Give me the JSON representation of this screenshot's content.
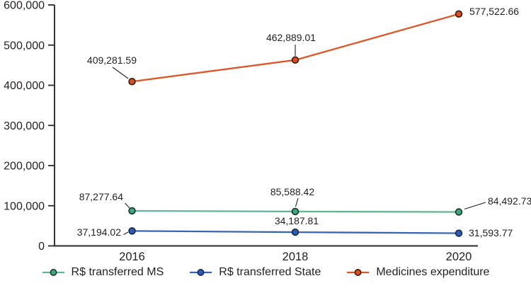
{
  "chart_data": {
    "type": "line",
    "title": "",
    "xlabel": "",
    "ylabel": "",
    "categories": [
      "2016",
      "2018",
      "2020"
    ],
    "series": [
      {
        "name": "R$ transferred MS",
        "color": "#63b593",
        "marker_fill": "#3fa883",
        "marker_stroke": "#17392b",
        "values": [
          87277.64,
          85588.42,
          84492.73
        ],
        "point_labels": [
          "87,277.64",
          "85,588.42",
          "84,492.73"
        ]
      },
      {
        "name": "R$ transferred State",
        "color": "#3c64b4",
        "marker_fill": "#2e5cb0",
        "marker_stroke": "#192a52",
        "values": [
          37194.02,
          34187.81,
          31593.77
        ],
        "point_labels": [
          "37,194.02",
          "34,187.81",
          "31,593.77"
        ]
      },
      {
        "name": "Medicines expenditure",
        "color": "#df5526",
        "marker_fill": "#d94e25",
        "marker_stroke": "#3f1d0b",
        "values": [
          409281.59,
          462889.01,
          577522.66
        ],
        "point_labels": [
          "409,281.59",
          "462,889.01",
          "577,522.66"
        ]
      }
    ],
    "ylim": [
      0,
      600000
    ],
    "yticks": [
      0,
      100000,
      200000,
      300000,
      400000,
      500000,
      600000
    ],
    "ytick_labels": [
      "0",
      "100,000",
      "200,000",
      "300,000",
      "400,000",
      "500,000",
      "600,000"
    ],
    "grid": false,
    "legend_position": "bottom",
    "colors": {
      "axis": "#2b2a29",
      "text": "#231f20",
      "background": "#ffffff"
    }
  }
}
